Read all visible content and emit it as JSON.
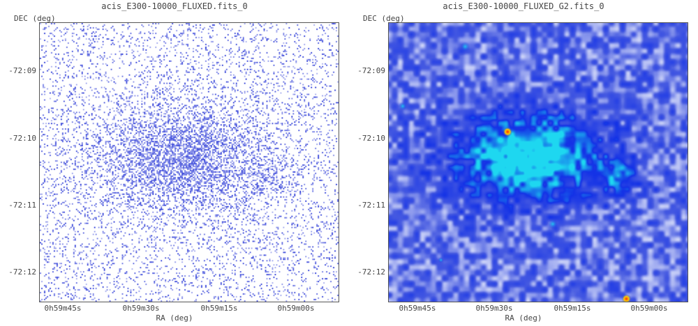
{
  "panels": [
    {
      "title": "acis_E300-10000_FLUXED.fits_0",
      "ylabel": "DEC (deg)",
      "xlabel": "RA (deg)",
      "yticks": [
        "-72:09",
        "-72:10",
        "-72:11",
        "-72:12"
      ],
      "xticks": [
        "0h59m45s",
        "0h59m30s",
        "0h59m15s",
        "0h59m00s"
      ],
      "style": "raw-counts"
    },
    {
      "title": "acis_E300-10000_FLUXED_G2.fits_0",
      "ylabel": "DEC (deg)",
      "xlabel": "RA (deg)",
      "yticks": [
        "-72:09",
        "-72:10",
        "-72:11",
        "-72:12"
      ],
      "xticks": [
        "0h59m45s",
        "0h59m30s",
        "0h59m15s",
        "0h59m00s"
      ],
      "style": "smoothed"
    }
  ],
  "colors": {
    "background": "#ffffff",
    "counts": "#3b3fd8",
    "smooth_low": "#ffffff",
    "smooth_mid": "#2d4de0",
    "smooth_high": "#18d8f0",
    "hot_spot": "#ff2a00"
  }
}
